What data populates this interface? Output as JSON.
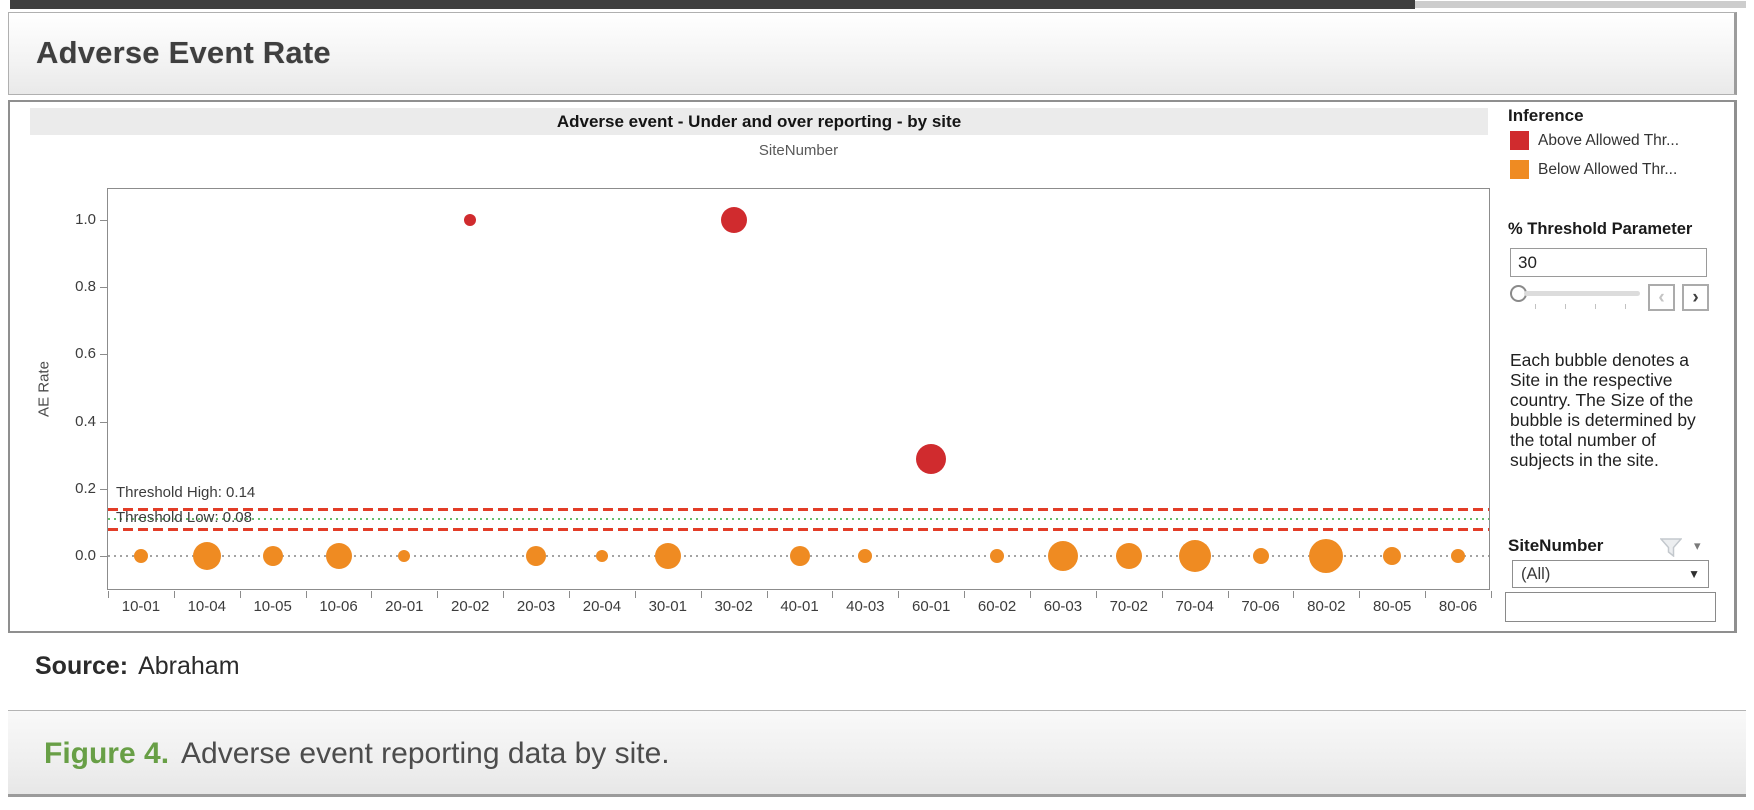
{
  "header": {
    "title": "Adverse Event Rate"
  },
  "chart_data": {
    "type": "scatter",
    "subtype": "bubble",
    "title": "Adverse event - Under and over reporting - by site",
    "xlabel": "SiteNumber",
    "ylabel": "AE Rate",
    "ylim": [
      -0.1,
      1.08
    ],
    "y_ticks": [
      0.0,
      0.2,
      0.4,
      0.6,
      0.8,
      1.0
    ],
    "grid": "off",
    "legend_position": "right",
    "categories": [
      "10-01",
      "10-04",
      "10-05",
      "10-06",
      "20-01",
      "20-02",
      "20-03",
      "20-04",
      "30-01",
      "30-02",
      "40-01",
      "40-03",
      "60-01",
      "60-02",
      "60-03",
      "70-02",
      "70-04",
      "70-06",
      "80-02",
      "80-05",
      "80-06"
    ],
    "points": [
      {
        "site": "10-01",
        "ae_rate": 0.0,
        "inference": "Below Allowed Threshold",
        "r": 7
      },
      {
        "site": "10-04",
        "ae_rate": 0.0,
        "inference": "Below Allowed Threshold",
        "r": 14
      },
      {
        "site": "10-05",
        "ae_rate": 0.0,
        "inference": "Below Allowed Threshold",
        "r": 10
      },
      {
        "site": "10-06",
        "ae_rate": 0.0,
        "inference": "Below Allowed Threshold",
        "r": 13
      },
      {
        "site": "20-01",
        "ae_rate": 0.0,
        "inference": "Below Allowed Threshold",
        "r": 6
      },
      {
        "site": "20-02",
        "ae_rate": 1.0,
        "inference": "Above Allowed Threshold",
        "r": 6
      },
      {
        "site": "20-03",
        "ae_rate": 0.0,
        "inference": "Below Allowed Threshold",
        "r": 10
      },
      {
        "site": "20-04",
        "ae_rate": 0.0,
        "inference": "Below Allowed Threshold",
        "r": 6
      },
      {
        "site": "30-01",
        "ae_rate": 0.0,
        "inference": "Below Allowed Threshold",
        "r": 13
      },
      {
        "site": "30-02",
        "ae_rate": 1.0,
        "inference": "Above Allowed Threshold",
        "r": 13
      },
      {
        "site": "40-01",
        "ae_rate": 0.0,
        "inference": "Below Allowed Threshold",
        "r": 10
      },
      {
        "site": "40-03",
        "ae_rate": 0.0,
        "inference": "Below Allowed Threshold",
        "r": 7
      },
      {
        "site": "60-01",
        "ae_rate": 0.29,
        "inference": "Above Allowed Threshold",
        "r": 15
      },
      {
        "site": "60-02",
        "ae_rate": 0.0,
        "inference": "Below Allowed Threshold",
        "r": 7
      },
      {
        "site": "60-03",
        "ae_rate": 0.0,
        "inference": "Below Allowed Threshold",
        "r": 15
      },
      {
        "site": "70-02",
        "ae_rate": 0.0,
        "inference": "Below Allowed Threshold",
        "r": 13
      },
      {
        "site": "70-04",
        "ae_rate": 0.0,
        "inference": "Below Allowed Threshold",
        "r": 16
      },
      {
        "site": "70-06",
        "ae_rate": 0.0,
        "inference": "Below Allowed Threshold",
        "r": 8
      },
      {
        "site": "80-02",
        "ae_rate": 0.0,
        "inference": "Below Allowed Threshold",
        "r": 17
      },
      {
        "site": "80-05",
        "ae_rate": 0.0,
        "inference": "Below Allowed Threshold",
        "r": 9
      },
      {
        "site": "80-06",
        "ae_rate": 0.0,
        "inference": "Below Allowed Threshold",
        "r": 7
      }
    ],
    "annotations": {
      "threshold_high": {
        "value": 0.14,
        "label": "Threshold High: 0.14"
      },
      "threshold_low": {
        "value": 0.08,
        "label": "Threshold Low: 0.08"
      },
      "reference_mid": {
        "value": 0.11
      },
      "zero_line": {
        "value": 0.0
      }
    },
    "colors": {
      "above": "#d02b2e",
      "below": "#ef8b22",
      "threshold_line": "#e23d28",
      "reference_line": "#66bb6a",
      "zero_line": "#a3a3a3"
    }
  },
  "sidebar": {
    "legend": {
      "title": "Inference",
      "items": [
        {
          "label": "Above Allowed Thr...",
          "color": "#d02b2e"
        },
        {
          "label": "Below Allowed Thr...",
          "color": "#ef8b22"
        }
      ]
    },
    "threshold_param": {
      "label": "% Threshold Parameter",
      "value": "30"
    },
    "slider": {
      "prev_glyph": "‹",
      "next_glyph": "›"
    },
    "note": "Each bubble denotes a Site in the respective country. The Size of the bubble is determined by the total number of subjects in the site.",
    "filter": {
      "title": "SiteNumber",
      "dropdown_value": "(All)",
      "dropdown_caret": "▼",
      "caret_glyph": "▾",
      "search_value": ""
    }
  },
  "source": {
    "label": "Source:",
    "value": "Abraham"
  },
  "caption": {
    "label": "Figure 4.",
    "text": "Adverse event reporting data by site."
  }
}
